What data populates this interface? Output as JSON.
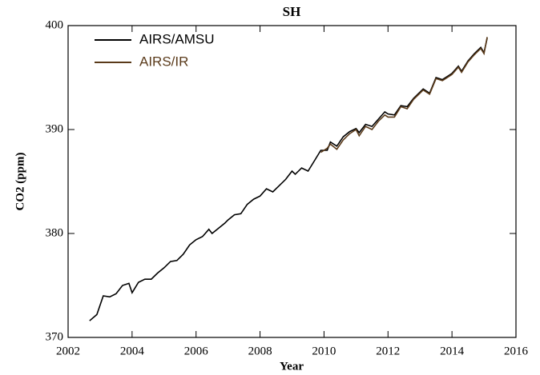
{
  "chart_data": {
    "type": "line",
    "title": "SH",
    "xlabel": "Year",
    "ylabel": "CO2 (ppm)",
    "xlim": [
      2002,
      2016
    ],
    "xticks": [
      2002,
      2004,
      2006,
      2008,
      2010,
      2012,
      2014,
      2016
    ],
    "ylim": [
      370,
      400
    ],
    "yticks": [
      370,
      380,
      390,
      400
    ],
    "legend": "upper left",
    "series": [
      {
        "name": "AIRS/AMSU",
        "color": "#000000",
        "x": [
          2002.67,
          2002.9,
          2003.1,
          2003.3,
          2003.5,
          2003.7,
          2003.9,
          2004.0,
          2004.2,
          2004.4,
          2004.6,
          2004.8,
          2005.0,
          2005.2,
          2005.4,
          2005.6,
          2005.8,
          2006.0,
          2006.2,
          2006.4,
          2006.5,
          2006.7,
          2006.9,
          2007.0,
          2007.2,
          2007.4,
          2007.6,
          2007.8,
          2008.0,
          2008.2,
          2008.4,
          2008.6,
          2008.8,
          2009.0,
          2009.1,
          2009.3,
          2009.5,
          2009.7,
          2009.9,
          2010.1,
          2010.2,
          2010.4,
          2010.6,
          2010.8,
          2011.0,
          2011.1,
          2011.3,
          2011.5,
          2011.7,
          2011.9,
          2012.0,
          2012.2,
          2012.4,
          2012.6,
          2012.8,
          2013.0,
          2013.1,
          2013.3,
          2013.5,
          2013.7,
          2013.9,
          2014.0,
          2014.2,
          2014.3,
          2014.5,
          2014.7,
          2014.9,
          2015.0,
          2015.1
        ],
        "values": [
          371.6,
          372.2,
          374.0,
          373.9,
          374.2,
          375.0,
          375.2,
          374.3,
          375.3,
          375.6,
          375.6,
          376.2,
          376.7,
          377.3,
          377.4,
          378.0,
          378.9,
          379.4,
          379.7,
          380.4,
          380.0,
          380.5,
          381.0,
          381.3,
          381.8,
          381.9,
          382.8,
          383.3,
          383.6,
          384.3,
          384.0,
          384.6,
          385.2,
          386.0,
          385.7,
          386.3,
          386.0,
          387.0,
          388.0,
          388.0,
          388.8,
          388.4,
          389.3,
          389.8,
          390.1,
          389.7,
          390.5,
          390.3,
          391.0,
          391.7,
          391.5,
          391.4,
          392.3,
          392.2,
          393.0,
          393.6,
          393.9,
          393.5,
          395.0,
          394.8,
          395.2,
          395.4,
          396.1,
          395.6,
          396.6,
          397.3,
          397.9,
          397.4,
          398.8
        ]
      },
      {
        "name": "AIRS/IR",
        "color": "#5a3a1a",
        "x": [
          2009.9,
          2010.1,
          2010.2,
          2010.4,
          2010.6,
          2010.8,
          2011.0,
          2011.1,
          2011.3,
          2011.5,
          2011.7,
          2011.9,
          2012.0,
          2012.2,
          2012.4,
          2012.6,
          2012.8,
          2013.0,
          2013.1,
          2013.3,
          2013.5,
          2013.7,
          2013.9,
          2014.0,
          2014.2,
          2014.3,
          2014.5,
          2014.7,
          2014.9,
          2015.0,
          2015.1
        ],
        "values": [
          387.8,
          388.2,
          388.6,
          388.1,
          389.0,
          389.6,
          390.0,
          389.4,
          390.3,
          390.0,
          390.8,
          391.4,
          391.2,
          391.2,
          392.2,
          392.0,
          392.9,
          393.5,
          393.8,
          393.4,
          394.9,
          394.7,
          395.1,
          395.3,
          396.0,
          395.5,
          396.5,
          397.2,
          397.8,
          397.3,
          398.9
        ]
      }
    ]
  }
}
